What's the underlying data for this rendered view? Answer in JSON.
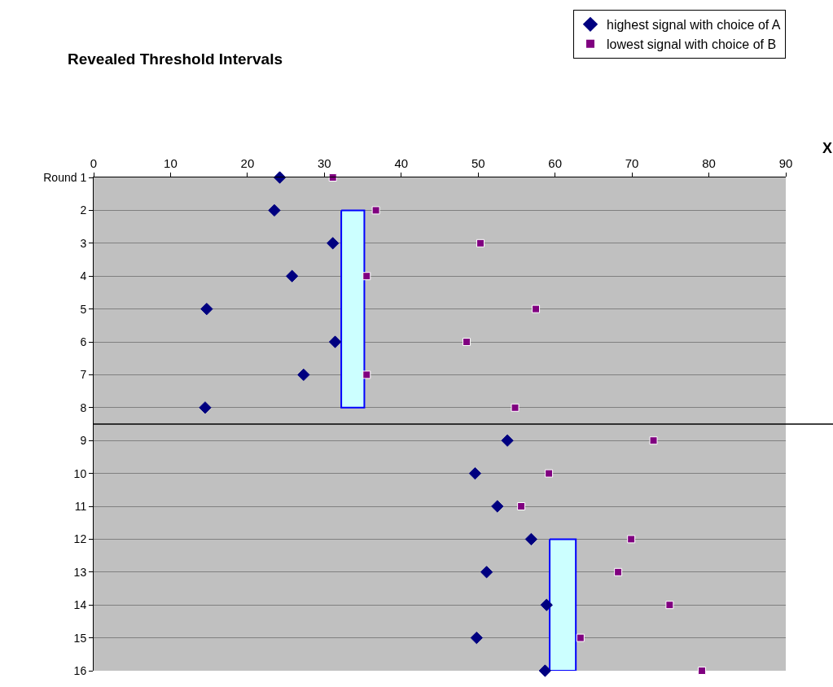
{
  "chart_data": {
    "type": "scatter",
    "title": "Revealed Threshold Intervals",
    "xlabel": "X",
    "series": [
      {
        "name": "highest signal with choice of A",
        "color": "#000080",
        "marker": "diamond",
        "x": [
          24.2,
          23.5,
          31.1,
          25.8,
          14.7,
          31.4,
          27.3,
          14.5,
          53.8,
          49.6,
          52.5,
          56.9,
          51.1,
          58.9,
          49.8,
          58.7
        ],
        "values": [
          1,
          2,
          3,
          4,
          5,
          6,
          7,
          8,
          9,
          10,
          11,
          12,
          13,
          14,
          15,
          16
        ]
      },
      {
        "name": "lowest signal with choice of B",
        "color": "#800080",
        "marker": "square",
        "x": [
          31.1,
          36.7,
          50.3,
          35.5,
          57.5,
          48.5,
          35.5,
          54.8,
          72.8,
          59.2,
          55.6,
          69.9,
          68.2,
          74.9,
          63.3,
          79.1
        ],
        "values": [
          1,
          2,
          3,
          4,
          5,
          6,
          7,
          8,
          9,
          10,
          11,
          12,
          13,
          14,
          15,
          16
        ]
      },
      {
        "type": "area",
        "color": "#ccffff",
        "x": [
          32.2,
          35.2,
          35.2,
          32.2,
          32.2
        ],
        "values": [
          2,
          2,
          8,
          8,
          2
        ]
      },
      {
        "type": "area",
        "color": "#ccffff",
        "x": [
          59.3,
          62.7,
          62.7,
          59.3,
          59.3
        ],
        "values": [
          12,
          12,
          16,
          16,
          12
        ]
      }
    ],
    "xlim": [
      0,
      90
    ],
    "xticks": [
      0,
      10,
      20,
      30,
      40,
      50,
      60,
      70,
      80,
      90
    ],
    "ylim": [
      16,
      1
    ],
    "yticks": [
      {
        "value": 1,
        "label": "Round 1"
      },
      2,
      3,
      4,
      5,
      6,
      7,
      8,
      9,
      10,
      11,
      12,
      13,
      14,
      15,
      16
    ],
    "ref_lines": [
      {
        "axis": "y",
        "value": 8.5,
        "color": "#000000"
      }
    ],
    "grid": "y",
    "legend": "top right"
  }
}
